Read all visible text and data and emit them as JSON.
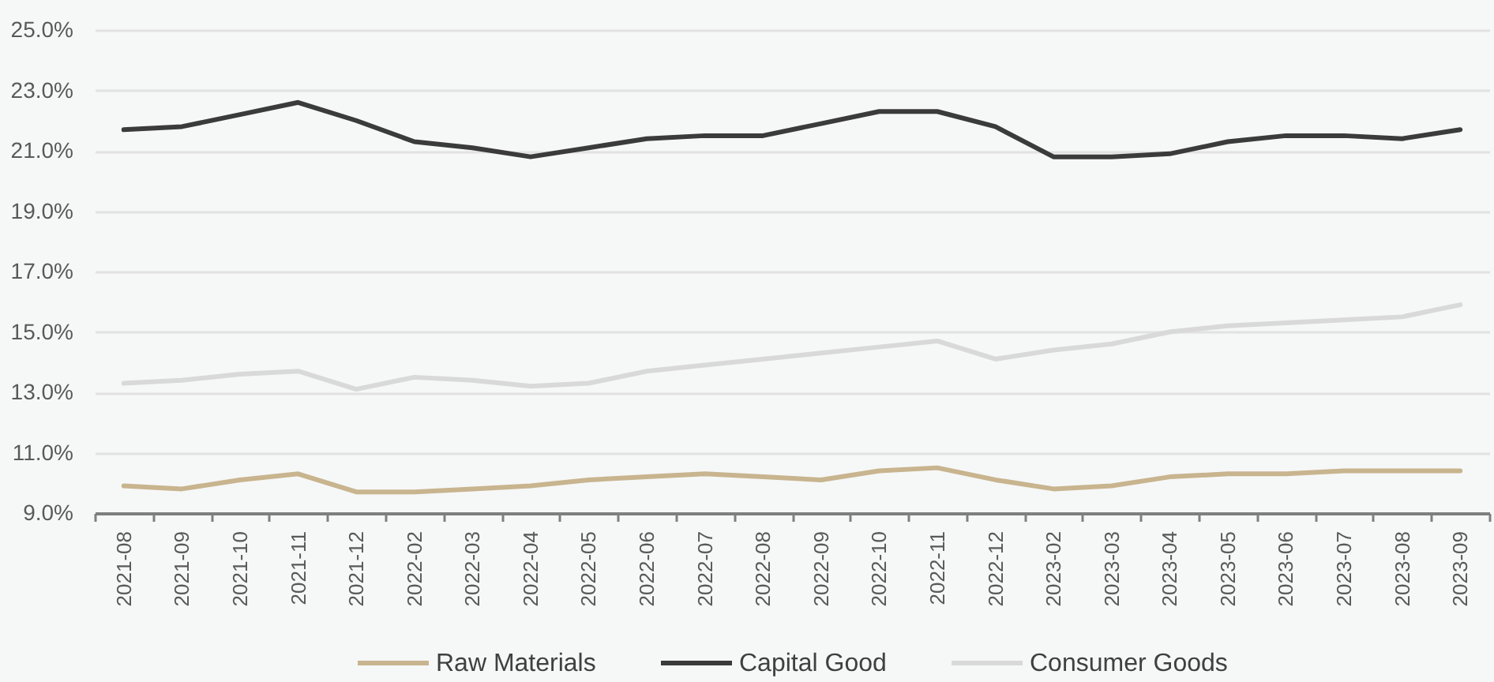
{
  "chart_data": {
    "type": "line",
    "categories": [
      "2021-08",
      "2021-09",
      "2021-10",
      "2021-11",
      "2021-12",
      "2022-02",
      "2022-03",
      "2022-04",
      "2022-05",
      "2022-06",
      "2022-07",
      "2022-08",
      "2022-09",
      "2022-10",
      "2022-11",
      "2022-12",
      "2023-02",
      "2023-03",
      "2023-04",
      "2023-05",
      "2023-06",
      "2023-07",
      "2023-08",
      "2023-09"
    ],
    "series": [
      {
        "name": "Raw Materials",
        "color": "#c8b48e",
        "values": [
          9.9,
          9.8,
          10.1,
          10.3,
          9.7,
          9.7,
          9.8,
          9.9,
          10.1,
          10.2,
          10.3,
          10.2,
          10.1,
          10.4,
          10.5,
          10.1,
          9.8,
          9.9,
          10.2,
          10.3,
          10.3,
          10.4,
          10.4,
          10.4
        ]
      },
      {
        "name": "Capital Good",
        "color": "#3b3b3b",
        "values": [
          21.7,
          21.8,
          22.2,
          22.6,
          22.0,
          21.3,
          21.1,
          20.8,
          21.1,
          21.4,
          21.5,
          21.5,
          21.9,
          22.3,
          22.3,
          21.8,
          20.8,
          20.8,
          20.9,
          21.3,
          21.5,
          21.5,
          21.4,
          21.7
        ]
      },
      {
        "name": "Consumer Goods",
        "color": "#d9d9d9",
        "values": [
          13.3,
          13.4,
          13.6,
          13.7,
          13.1,
          13.5,
          13.4,
          13.2,
          13.3,
          13.7,
          13.9,
          14.1,
          14.3,
          14.5,
          14.7,
          14.1,
          14.4,
          14.6,
          15.0,
          15.2,
          15.3,
          15.4,
          15.5,
          15.9
        ]
      }
    ],
    "ylim": [
      9,
      25
    ],
    "yticks": [
      {
        "value": 9,
        "label": "9.0%"
      },
      {
        "value": 11,
        "label": "11.0%"
      },
      {
        "value": 13,
        "label": "13.0%"
      },
      {
        "value": 15,
        "label": "15.0%"
      },
      {
        "value": 17,
        "label": "17.0%"
      },
      {
        "value": 19,
        "label": "19.0%"
      },
      {
        "value": 21,
        "label": "21.0%"
      },
      {
        "value": 23,
        "label": "23.0%"
      },
      {
        "value": 25,
        "label": "25.0%"
      }
    ],
    "grid": "y",
    "legend": "bottom",
    "marker": "none",
    "line_style": "solid"
  }
}
